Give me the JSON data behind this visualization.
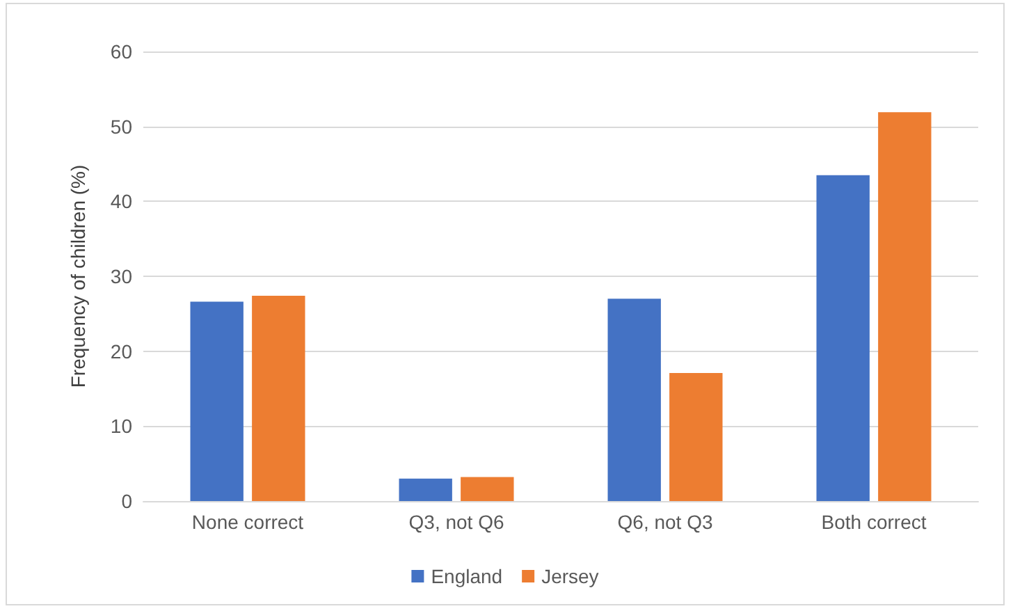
{
  "chart_data": {
    "type": "bar",
    "ylabel": "Frequency of children (%)",
    "categories": [
      "None correct",
      "Q3, not Q6",
      "Q6, not Q3",
      "Both correct"
    ],
    "series": [
      {
        "name": "England",
        "color": "#4472c4",
        "values": [
          26.6,
          3.0,
          27.0,
          43.5
        ]
      },
      {
        "name": "Jersey",
        "color": "#ed7d31",
        "values": [
          27.4,
          3.2,
          17.1,
          51.9
        ]
      }
    ],
    "ylim": [
      0,
      60
    ],
    "yticks": [
      0,
      10,
      20,
      30,
      40,
      50,
      60
    ],
    "grid": "y",
    "legend": "bottom"
  }
}
